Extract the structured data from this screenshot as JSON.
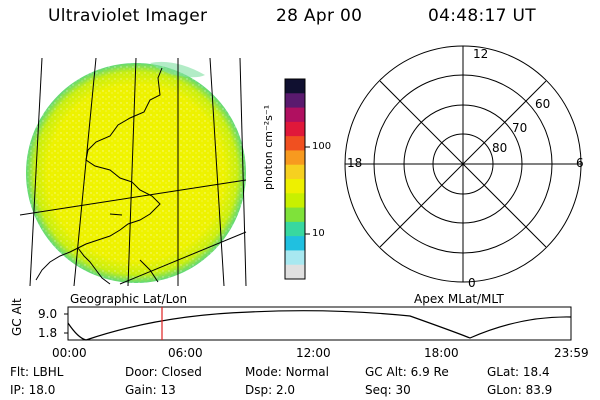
{
  "header": {
    "instrument": "Ultraviolet Imager",
    "date": "28 Apr 00",
    "time": "04:48:17 UT"
  },
  "colorbar": {
    "unit_label": "photon cm⁻²s⁻¹",
    "ticks": [
      "100",
      "10"
    ],
    "colors": [
      "#101030",
      "#5a1a6e",
      "#b01060",
      "#e0183a",
      "#f05020",
      "#f79a1f",
      "#f6d020",
      "#eef000",
      "#c8f000",
      "#7fe23a",
      "#38d8a0",
      "#20c0e0",
      "#a8e8f0",
      "#e0e0e0"
    ]
  },
  "labels": {
    "left_projection": "Geographic Lat/Lon",
    "right_projection": "Apex MLat/MLT"
  },
  "polar": {
    "mlt_labels": [
      "12",
      "18",
      "6",
      "0"
    ],
    "lat_labels": [
      "60",
      "70",
      "80"
    ]
  },
  "altitude_plot": {
    "ylabel": "GC Alt",
    "y_ticks": [
      "9.0",
      "1.8"
    ],
    "x_ticks": [
      "00:00",
      "06:00",
      "12:00",
      "18:00",
      "23:59"
    ],
    "marker_color": "#e02020"
  },
  "status": {
    "row1": [
      {
        "label": "Flt:",
        "value": "LBHL"
      },
      {
        "label": "Door:",
        "value": "Closed"
      },
      {
        "label": "Mode:",
        "value": "Normal"
      },
      {
        "label": "GC Alt:",
        "value": "6.9 Re"
      },
      {
        "label": "GLat:",
        "value": "18.4"
      }
    ],
    "row2": [
      {
        "label": "IP:",
        "value": "18.0"
      },
      {
        "label": "Gain:",
        "value": "13"
      },
      {
        "label": "Dsp:",
        "value": "2.0"
      },
      {
        "label": "Seq:",
        "value": "30"
      },
      {
        "label": "GLon:",
        "value": "83.9"
      }
    ]
  }
}
